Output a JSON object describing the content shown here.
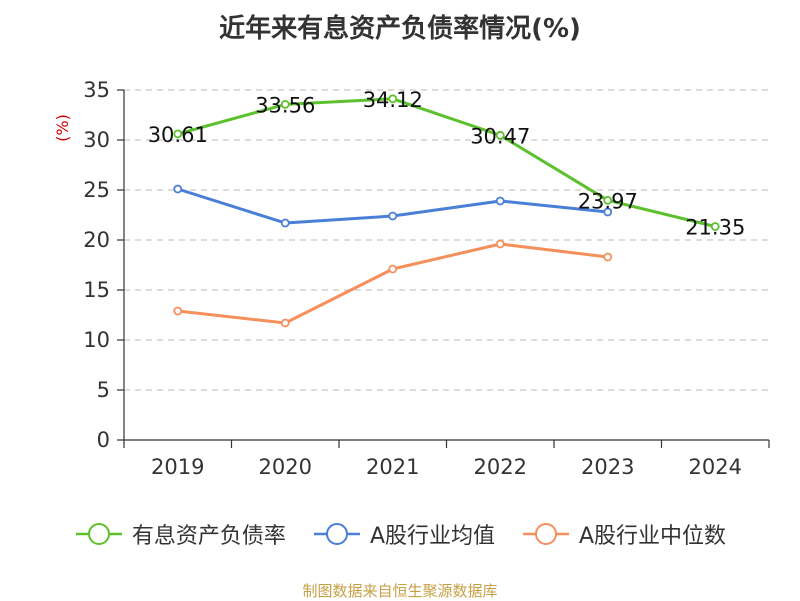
{
  "chart_data": {
    "type": "line",
    "title": "近年来有息资产负债率情况(%)",
    "ylabel": "(%)",
    "xlabel": "",
    "categories": [
      "2019",
      "2020",
      "2021",
      "2022",
      "2023",
      "2024"
    ],
    "ylim": [
      0,
      35
    ],
    "yticks": [
      0,
      5,
      10,
      15,
      20,
      25,
      30,
      35
    ],
    "grid": true,
    "legend_position": "bottom",
    "series": [
      {
        "name": "有息资产负债率",
        "color": "#5cc12c",
        "values": [
          30.61,
          33.56,
          34.12,
          30.47,
          23.97,
          21.35
        ],
        "labels": [
          "30.61",
          "33.56",
          "34.12",
          "30.47",
          "23.97",
          "21.35"
        ]
      },
      {
        "name": "A股行业均值",
        "color": "#4a7fd8",
        "values": [
          25.1,
          21.7,
          22.4,
          23.9,
          22.8,
          null
        ]
      },
      {
        "name": "A股行业中位数",
        "color": "#f58f5b",
        "values": [
          12.9,
          11.7,
          17.1,
          19.6,
          18.3,
          null
        ]
      }
    ]
  },
  "source": "制图数据来自恒生聚源数据库"
}
